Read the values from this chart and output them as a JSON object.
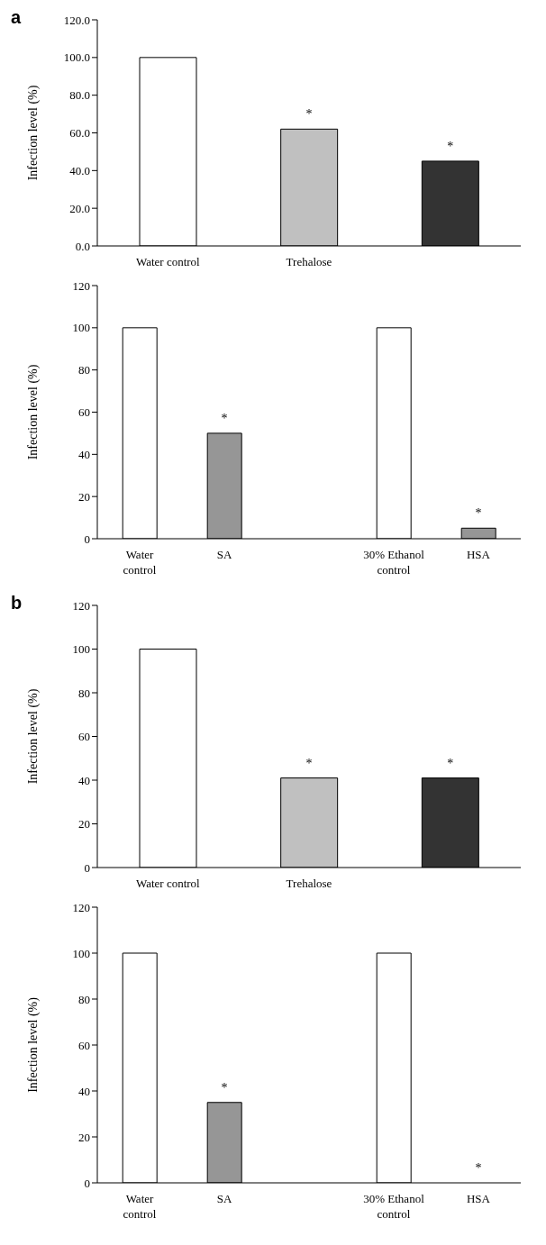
{
  "chart_data": [
    {
      "type": "bar",
      "title": "a",
      "ylabel": "Infection level (%)",
      "categories": [
        "Water control",
        "Trehalose",
        null
      ],
      "values": [
        100,
        62,
        45
      ],
      "colors": [
        "#ffffff",
        "#c0c0c0",
        "#333333"
      ],
      "value_labels": [
        null,
        "*",
        "*"
      ],
      "ylim": [
        0,
        120
      ],
      "yticks": [
        {
          "value": 0,
          "label": "0.0"
        },
        {
          "value": 20,
          "label": "20.0"
        },
        {
          "value": 40,
          "label": "40.0"
        },
        {
          "value": 60,
          "label": "60.0"
        },
        {
          "value": 80,
          "label": "80.0"
        },
        {
          "value": 100,
          "label": "100.0"
        },
        {
          "value": 120,
          "label": "120.0"
        }
      ]
    },
    {
      "type": "bar",
      "ylabel": "Infection level (%)",
      "categories": [
        "Water control",
        "SA",
        null,
        "30% Ethanol control",
        "HSA"
      ],
      "values": [
        100,
        50,
        null,
        100,
        5
      ],
      "colors": [
        "#ffffff",
        "#969696",
        "#ffffff",
        "#ffffff",
        "#969696"
      ],
      "value_labels": [
        null,
        "*",
        null,
        null,
        "*"
      ],
      "ylim": [
        0,
        120
      ],
      "yticks": [
        0,
        20,
        40,
        60,
        80,
        100,
        120
      ]
    },
    {
      "type": "bar",
      "title": "b",
      "ylabel": "Infection level (%)",
      "categories": [
        "Water control",
        "Trehalose",
        null
      ],
      "values": [
        100,
        41,
        41
      ],
      "colors": [
        "#ffffff",
        "#c0c0c0",
        "#333333"
      ],
      "value_labels": [
        null,
        "*",
        "*"
      ],
      "ylim": [
        0,
        120
      ],
      "yticks": [
        0,
        20,
        40,
        60,
        80,
        100,
        120
      ]
    },
    {
      "type": "bar",
      "ylabel": "Infection level (%)",
      "categories": [
        "Water control",
        "SA",
        null,
        "30% Ethanol control",
        "HSA"
      ],
      "values": [
        100,
        35,
        null,
        100,
        0
      ],
      "colors": [
        "#ffffff",
        "#969696",
        "#ffffff",
        "#ffffff",
        "#969696"
      ],
      "value_labels": [
        null,
        "*",
        null,
        null,
        "*"
      ],
      "ylim": [
        0,
        120
      ],
      "yticks": [
        0,
        20,
        40,
        60,
        80,
        100,
        120
      ]
    }
  ]
}
